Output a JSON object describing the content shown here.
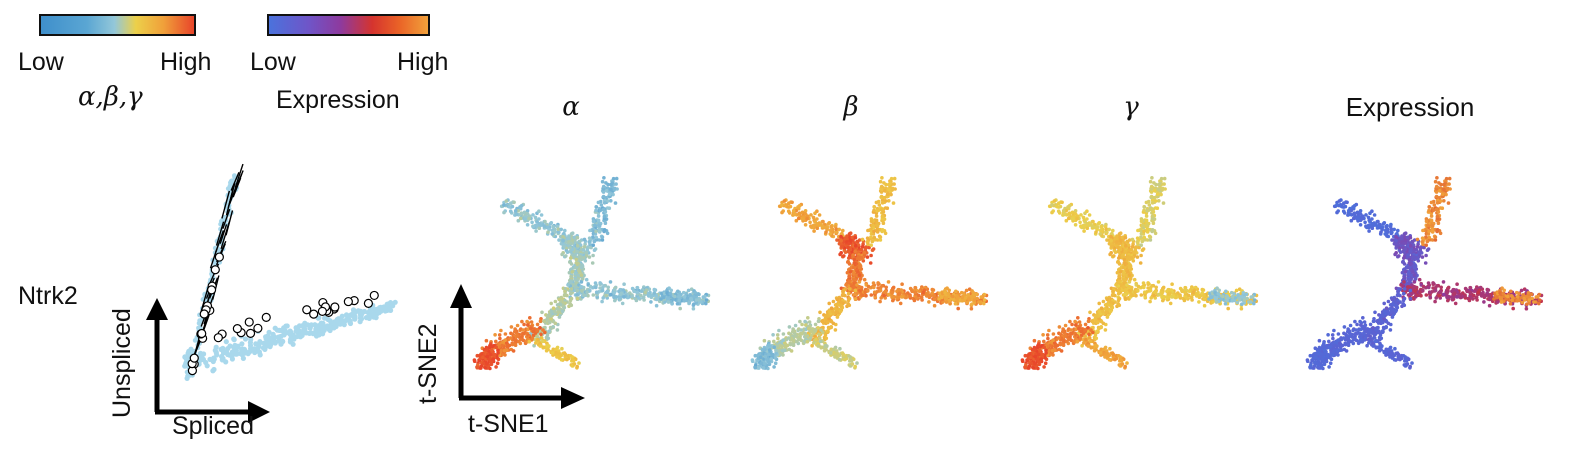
{
  "legend_params": {
    "low": "Low",
    "high": "High",
    "title": "α,β,γ",
    "colors": [
      "#3f8fcb",
      "#93c7d9",
      "#ecd04a",
      "#e8452a"
    ]
  },
  "legend_expression": {
    "low": "Low",
    "high": "High",
    "title": "Expression",
    "colors": [
      "#4b72dc",
      "#8e3a9e",
      "#d5342e",
      "#f1a13b"
    ]
  },
  "gene": {
    "name": "Ntrk2"
  },
  "phase_plot": {
    "x_axis": "Spliced",
    "y_axis": "Unspliced",
    "point_color": "#a9d8ec"
  },
  "tsne_axes": {
    "x_axis": "t-SNE1",
    "y_axis": "t-SNE2"
  },
  "panels": [
    {
      "title": "α"
    },
    {
      "title": "β"
    },
    {
      "title": "γ"
    },
    {
      "title": "Expression"
    }
  ]
}
